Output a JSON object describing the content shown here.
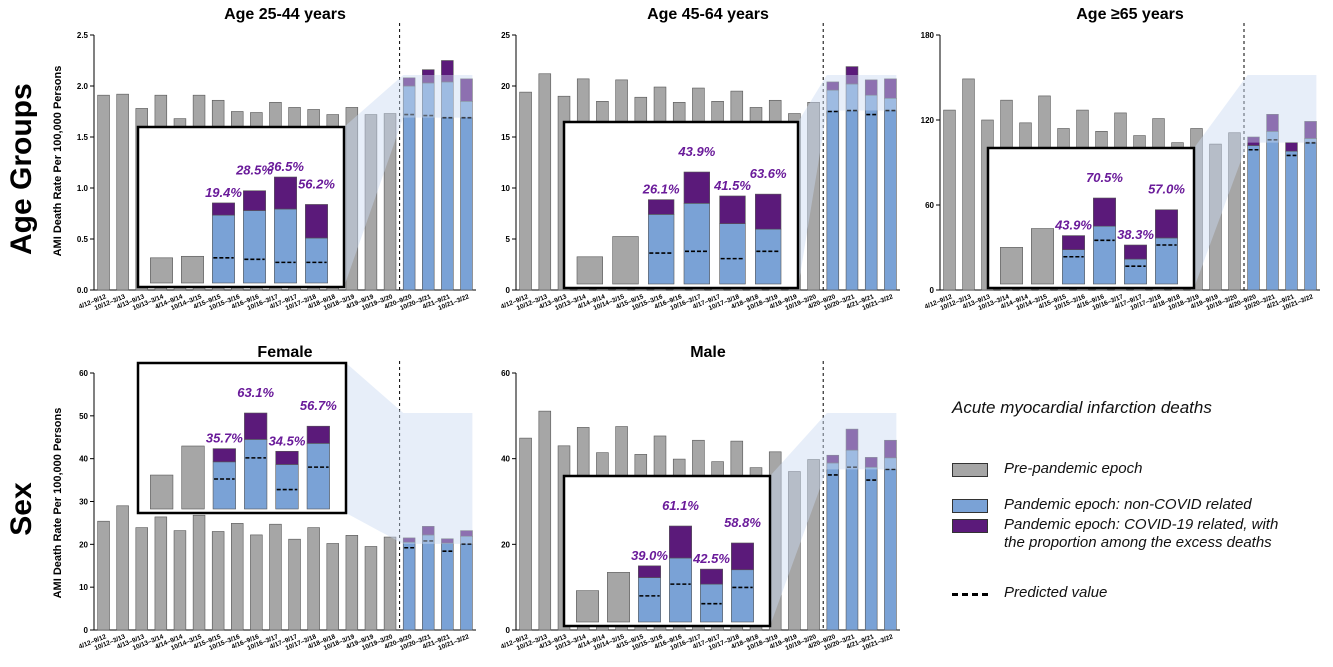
{
  "figure": {
    "row_labels": [
      "Age Groups",
      "Sex"
    ],
    "ylabel": "AMI Death Rate Per 100,000 Persons",
    "colors": {
      "pre": "#a6a6a6",
      "non_covid": "#7aa2d6",
      "covid": "#5b1a7a",
      "inset_pct": "#6a1b9a",
      "inset_shade": "#c9daf2"
    }
  },
  "legend": {
    "title": "Acute myocardial infarction deaths",
    "items": [
      {
        "label": "Pre-pandemic epoch",
        "kind": "pre"
      },
      {
        "label": "Pandemic epoch: non-COVID related",
        "kind": "non_covid"
      },
      {
        "label": "Pandemic epoch: COVID-19 related, with the proportion among the excess deaths",
        "kind": "covid"
      },
      {
        "label": "Predicted value",
        "kind": "dash"
      }
    ]
  },
  "chart_data": [
    {
      "type": "bar",
      "title": "Age 25-44 years",
      "categories": [
        "4/12–9/12",
        "10/12–3/13",
        "4/13–9/13",
        "10/13–3/14",
        "4/14–9/14",
        "10/14–3/15",
        "4/15–9/15",
        "10/15–3/16",
        "4/16–9/16",
        "10/16–3/17",
        "4/17–9/17",
        "10/17–3/18",
        "4/18–9/18",
        "10/18–3/19",
        "4/19–9/19",
        "10/19–3/20",
        "4/20–9/20",
        "10/20–3/21",
        "4/21–9/21",
        "10/21–3/22"
      ],
      "pre_pandemic": [
        1.91,
        1.92,
        1.78,
        1.91,
        1.68,
        1.91,
        1.86,
        1.75,
        1.74,
        1.84,
        1.79,
        1.77,
        1.72,
        1.79,
        1.72,
        1.73
      ],
      "pandemic_non_covid": [
        2.0,
        2.03,
        2.04,
        1.85
      ],
      "pandemic_covid": [
        0.08,
        0.13,
        0.21,
        0.22
      ],
      "predicted": [
        1.72,
        1.71,
        1.69,
        1.69
      ],
      "ylim": [
        0,
        2.5
      ],
      "yticks": [
        "0.0",
        "0.5",
        "1.0",
        "1.5",
        "2.0",
        "2.5"
      ],
      "inset_percentages": [
        "19.4%",
        "28.5%",
        "36.5%",
        "56.2%"
      ]
    },
    {
      "type": "bar",
      "title": "Age 45-64 years",
      "categories": [
        "4/12–9/12",
        "10/12–3/13",
        "4/13–9/13",
        "10/13–3/14",
        "4/14–9/14",
        "10/14–3/15",
        "4/15–9/15",
        "10/15–3/16",
        "4/16–9/16",
        "10/16–3/17",
        "4/17–9/17",
        "10/17–3/18",
        "4/18–9/18",
        "10/18–3/19",
        "4/19–9/19",
        "10/19–3/20",
        "4/20–9/20",
        "10/20–3/21",
        "4/21–9/21",
        "10/21–3/22"
      ],
      "pre_pandemic": [
        19.4,
        21.2,
        19.0,
        20.7,
        18.5,
        20.6,
        18.9,
        19.9,
        18.4,
        19.8,
        18.5,
        19.5,
        17.9,
        18.6,
        17.3,
        18.4
      ],
      "pandemic_non_covid": [
        19.6,
        20.2,
        19.1,
        18.8
      ],
      "pandemic_covid": [
        0.8,
        1.7,
        1.5,
        1.9
      ],
      "predicted": [
        17.5,
        17.6,
        17.2,
        17.6
      ],
      "ylim": [
        0,
        25
      ],
      "yticks": [
        "0",
        "5",
        "10",
        "15",
        "20",
        "25"
      ],
      "inset_percentages": [
        "26.1%",
        "43.9%",
        "41.5%",
        "63.6%"
      ]
    },
    {
      "type": "bar",
      "title": "Age ≥65 years",
      "categories": [
        "4/12–9/12",
        "10/12–3/13",
        "4/13–9/13",
        "10/13–3/14",
        "4/14–9/14",
        "10/14–3/15",
        "4/15–9/15",
        "10/15–3/16",
        "4/16–9/16",
        "10/16–3/17",
        "4/17–9/17",
        "10/17–3/18",
        "4/18–9/18",
        "10/18–3/19",
        "4/19–9/19",
        "10/19–3/20",
        "4/20–9/20",
        "10/20–3/21",
        "4/21–9/21",
        "10/21–3/22"
      ],
      "pre_pandemic": [
        127,
        149,
        120,
        134,
        118,
        137,
        114,
        127,
        112,
        125,
        109,
        121,
        104,
        114,
        103,
        111
      ],
      "pandemic_non_covid": [
        102,
        112,
        98,
        107
      ],
      "pandemic_covid": [
        6,
        12,
        6,
        12
      ],
      "predicted": [
        99,
        106,
        95,
        104
      ],
      "ylim": [
        0,
        180
      ],
      "yticks": [
        "0",
        "60",
        "120",
        "180"
      ],
      "inset_percentages": [
        "43.9%",
        "70.5%",
        "38.3%",
        "57.0%"
      ]
    },
    {
      "type": "bar",
      "title": "Female",
      "categories": [
        "4/12–9/12",
        "10/12–3/13",
        "4/13–9/13",
        "10/13–3/14",
        "4/14–9/14",
        "10/14–3/15",
        "4/15–9/15",
        "10/15–3/16",
        "4/16–9/16",
        "10/16–3/17",
        "4/17–9/17",
        "10/17–3/18",
        "4/18–9/18",
        "10/18–3/19",
        "4/19–9/19",
        "10/19–3/20",
        "4/20–9/20",
        "10/20–3/21",
        "4/21–9/21",
        "10/21–3/22"
      ],
      "pre_pandemic": [
        25.4,
        29.0,
        23.9,
        26.4,
        23.2,
        26.8,
        23.0,
        24.9,
        22.2,
        24.7,
        21.2,
        23.9,
        20.2,
        22.1,
        19.5,
        21.7
      ],
      "pandemic_non_covid": [
        20.5,
        22.2,
        20.3,
        21.9
      ],
      "pandemic_covid": [
        1.0,
        2.0,
        1.0,
        1.3
      ],
      "predicted": [
        19.2,
        20.8,
        18.4,
        20.1
      ],
      "ylim": [
        0,
        60
      ],
      "yticks": [
        "0",
        "10",
        "20",
        "30",
        "40",
        "50",
        "60"
      ],
      "inset_percentages": [
        "35.7%",
        "63.1%",
        "34.5%",
        "56.7%"
      ]
    },
    {
      "type": "bar",
      "title": "Male",
      "categories": [
        "4/12–9/12",
        "10/12–3/13",
        "4/13–9/13",
        "10/13–3/14",
        "4/14–9/14",
        "10/14–3/15",
        "4/15–9/15",
        "10/15–3/16",
        "4/16–9/16",
        "10/16–3/17",
        "4/17–9/17",
        "10/17–3/18",
        "4/18–9/18",
        "10/18–3/19",
        "4/19–9/19",
        "10/19–3/20",
        "4/20–9/20",
        "10/20–3/21",
        "4/21–9/21",
        "10/21–3/22"
      ],
      "pre_pandemic": [
        44.8,
        51.1,
        43.0,
        47.3,
        41.4,
        47.5,
        41.0,
        45.3,
        39.9,
        44.3,
        39.3,
        44.1,
        37.9,
        41.6,
        37.0,
        39.8
      ],
      "pandemic_non_covid": [
        39.0,
        42.0,
        38.0,
        40.2
      ],
      "pandemic_covid": [
        1.8,
        4.9,
        2.3,
        4.1
      ],
      "predicted": [
        36.2,
        38.0,
        35.0,
        37.5
      ],
      "ylim": [
        0,
        60
      ],
      "yticks": [
        "0",
        "20",
        "40",
        "60"
      ],
      "inset_percentages": [
        "39.0%",
        "61.1%",
        "42.5%",
        "58.8%"
      ]
    }
  ]
}
